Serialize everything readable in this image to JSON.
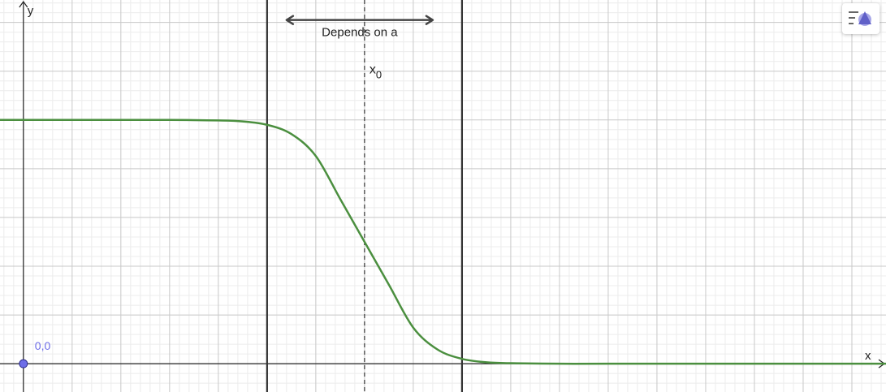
{
  "chart_data": {
    "type": "line",
    "xlabel": "x",
    "ylabel": "y",
    "xlim": [
      -0.48,
      17.7
    ],
    "ylim": [
      -0.58,
      7.46
    ],
    "grid": true,
    "grid_major": 1,
    "grid_minor": 0.2,
    "series": [
      {
        "color": "#4b8f3f",
        "x": [
          -0.5,
          0,
          1,
          2,
          3,
          4,
          4.5,
          5,
          5.5,
          6,
          6.5,
          7,
          7.5,
          8,
          8.5,
          9,
          9.5,
          10,
          11,
          12,
          14,
          17.7
        ],
        "y": [
          5,
          5,
          5,
          5,
          5,
          4.99,
          4.97,
          4.9,
          4.71,
          4.26,
          3.38,
          2.5,
          1.62,
          0.74,
          0.29,
          0.1,
          0.03,
          0.01,
          0,
          0,
          0,
          0
        ]
      }
    ],
    "vertical_lines": [
      {
        "x": 5,
        "style": "solid",
        "color": "#333333"
      },
      {
        "x": 9,
        "style": "solid",
        "color": "#333333"
      },
      {
        "x": 7,
        "style": "dashed",
        "color": "#333333"
      }
    ],
    "annotations": {
      "arrow": {
        "x1": 5.4,
        "x2": 8.4,
        "y": 7.05,
        "label": "Depends on a"
      },
      "x0_label": {
        "main": "x",
        "sub": "0",
        "x": 7.1,
        "y": 5.95
      }
    },
    "point": {
      "x": 0,
      "y": 0,
      "label": "0,0",
      "color": "#6d6de8"
    }
  },
  "toolbar": {
    "style_bar_icon": "style-bar-icon"
  }
}
